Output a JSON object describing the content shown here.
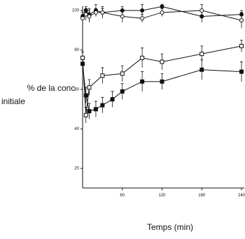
{
  "chart_data": {
    "type": "line",
    "ylabel_lines": [
      "% de la conc",
      "initiale"
    ],
    "xlabel": "Temps (min)",
    "xlim": [
      0,
      240
    ],
    "ylim": [
      10,
      102
    ],
    "xticks": [
      60,
      120,
      180,
      240
    ],
    "yticks": [
      20,
      40,
      60,
      80,
      100
    ],
    "series": [
      {
        "color": "#111",
        "marker": "filled-circle",
        "x": [
          0,
          5,
          10,
          20,
          30,
          60,
          90,
          120,
          180,
          240
        ],
        "values": [
          97,
          100,
          98,
          100,
          99,
          100,
          100,
          102,
          97,
          98
        ],
        "errors": [
          2,
          2,
          3,
          3,
          2,
          2,
          3,
          1,
          3,
          2
        ]
      },
      {
        "color": "#111",
        "marker": "open-circle",
        "x": [
          0,
          5,
          10,
          20,
          30,
          60,
          90,
          120,
          180,
          240
        ],
        "values": [
          96,
          98,
          97,
          99,
          99,
          97,
          96,
          99,
          100,
          95
        ],
        "errors": [
          2,
          3,
          3,
          2,
          3,
          3,
          2,
          2,
          3,
          4
        ]
      },
      {
        "color": "#111",
        "marker": "open-square",
        "x": [
          0,
          5,
          10,
          30,
          60,
          90,
          120,
          180,
          240
        ],
        "values": [
          76,
          47,
          61,
          67,
          68,
          76,
          74,
          78,
          82
        ],
        "errors": [
          3,
          4,
          4,
          4,
          4,
          5,
          4,
          4,
          3
        ]
      },
      {
        "color": "#111",
        "marker": "filled-square",
        "x": [
          0,
          5,
          10,
          20,
          30,
          45,
          60,
          90,
          120,
          180,
          240
        ],
        "values": [
          73,
          57,
          49,
          50,
          52,
          55,
          59,
          64,
          64,
          70,
          69
        ],
        "errors": [
          2,
          4,
          4,
          4,
          4,
          4,
          4,
          5,
          4,
          5,
          5
        ]
      }
    ]
  }
}
